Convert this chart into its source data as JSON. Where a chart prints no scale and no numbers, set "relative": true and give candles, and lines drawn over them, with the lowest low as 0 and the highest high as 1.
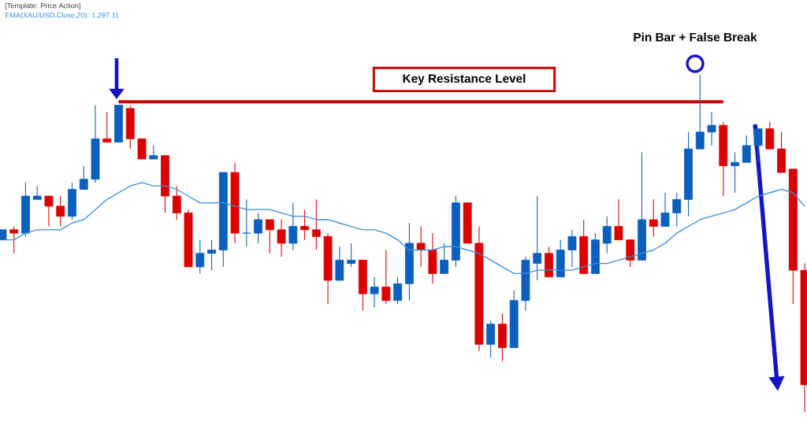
{
  "chart_data": {
    "type": "candlestick",
    "relative": true,
    "legend": "top left",
    "categories": [
      null,
      null,
      null,
      null,
      null,
      null,
      null,
      null,
      null,
      null,
      null,
      null,
      null,
      null,
      null,
      null,
      null,
      null,
      null,
      null,
      null,
      null,
      null,
      null,
      null,
      null,
      null,
      null,
      null,
      null,
      null,
      null,
      null,
      null,
      null,
      null,
      null,
      null,
      null,
      null,
      null,
      null,
      null,
      null,
      null,
      null,
      null,
      null,
      null,
      null,
      null,
      null,
      null,
      null,
      null,
      null,
      null,
      null,
      null,
      null,
      null,
      null,
      null,
      null,
      null,
      null,
      null,
      null,
      null,
      null
    ],
    "series": [
      {
        "type": "line",
        "name": "EMA(XAU/USD.Close,20): 1,297.11",
        "color": "#3b8fe0",
        "values": [
          0.51,
          0.51,
          0.53,
          0.54,
          0.54,
          0.54,
          0.56,
          0.57,
          0.6,
          0.63,
          0.65,
          0.67,
          0.68,
          0.67,
          0.67,
          0.66,
          0.64,
          0.62,
          0.62,
          0.62,
          0.61,
          0.6,
          0.6,
          0.6,
          0.59,
          0.58,
          0.58,
          0.57,
          0.57,
          0.56,
          0.55,
          0.54,
          0.54,
          0.53,
          0.51,
          0.48,
          0.48,
          0.48,
          0.49,
          0.49,
          0.48,
          0.47,
          0.45,
          0.43,
          0.41,
          0.41,
          0.42,
          0.42,
          0.42,
          0.42,
          0.43,
          0.44,
          0.44,
          0.45,
          0.46,
          0.47,
          0.48,
          0.5,
          0.53,
          0.55,
          0.57,
          0.58,
          0.59,
          0.6,
          0.62,
          0.64,
          0.65,
          0.66,
          0.65,
          0.61
        ]
      },
      {
        "type": "line",
        "color": "#cc0000",
        "values": [
          null,
          null,
          null,
          null,
          null,
          null,
          null,
          null,
          null,
          null,
          0.92,
          null,
          null,
          null,
          null,
          null,
          null,
          null,
          null,
          null,
          null,
          null,
          null,
          null,
          null,
          null,
          null,
          null,
          null,
          null,
          null,
          null,
          null,
          null,
          null,
          null,
          null,
          null,
          null,
          null,
          null,
          null,
          null,
          null,
          null,
          null,
          null,
          null,
          null,
          null,
          null,
          null,
          null,
          null,
          null,
          null,
          null,
          null,
          null,
          null,
          null,
          null,
          0.92,
          null,
          null,
          null,
          null,
          null,
          null,
          null
        ]
      },
      {
        "ohlc": [
          [
            0.51,
            0.54,
            0.51,
            0.54
          ],
          [
            0.54,
            0.55,
            0.47,
            0.53
          ],
          [
            0.53,
            0.68,
            0.52,
            0.64
          ],
          [
            0.63,
            0.67,
            0.63,
            0.64
          ],
          [
            0.64,
            0.64,
            0.55,
            0.61
          ],
          [
            0.61,
            0.64,
            0.55,
            0.58
          ],
          [
            0.58,
            0.68,
            0.57,
            0.66
          ],
          [
            0.66,
            0.73,
            0.66,
            0.69
          ],
          [
            0.69,
            0.91,
            0.68,
            0.81
          ],
          [
            0.81,
            0.89,
            0.8,
            0.8
          ],
          [
            0.8,
            0.91,
            0.8,
            0.91
          ],
          [
            0.9,
            0.91,
            0.78,
            0.81
          ],
          [
            0.81,
            0.81,
            0.75,
            0.75
          ],
          [
            0.75,
            0.79,
            0.75,
            0.76
          ],
          [
            0.76,
            0.76,
            0.59,
            0.64
          ],
          [
            0.64,
            0.67,
            0.57,
            0.59
          ],
          [
            0.59,
            0.6,
            0.43,
            0.43
          ],
          [
            0.43,
            0.51,
            0.41,
            0.47
          ],
          [
            0.47,
            0.51,
            0.42,
            0.48
          ],
          [
            0.48,
            0.71,
            0.43,
            0.71
          ],
          [
            0.71,
            0.74,
            0.5,
            0.53
          ],
          [
            0.53,
            0.63,
            0.49,
            0.53
          ],
          [
            0.53,
            0.59,
            0.5,
            0.57
          ],
          [
            0.57,
            0.57,
            0.47,
            0.54
          ],
          [
            0.54,
            0.57,
            0.46,
            0.5
          ],
          [
            0.5,
            0.62,
            0.48,
            0.55
          ],
          [
            0.55,
            0.6,
            0.51,
            0.54
          ],
          [
            0.54,
            0.63,
            0.48,
            0.52
          ],
          [
            0.52,
            0.53,
            0.32,
            0.39
          ],
          [
            0.39,
            0.49,
            0.39,
            0.45
          ],
          [
            0.44,
            0.5,
            0.43,
            0.45
          ],
          [
            0.45,
            0.45,
            0.3,
            0.35
          ],
          [
            0.35,
            0.4,
            0.31,
            0.37
          ],
          [
            0.37,
            0.48,
            0.32,
            0.33
          ],
          [
            0.33,
            0.4,
            0.32,
            0.38
          ],
          [
            0.38,
            0.56,
            0.33,
            0.5
          ],
          [
            0.5,
            0.55,
            0.43,
            0.48
          ],
          [
            0.48,
            0.53,
            0.38,
            0.41
          ],
          [
            0.41,
            0.5,
            0.41,
            0.45
          ],
          [
            0.45,
            0.64,
            0.43,
            0.62
          ],
          [
            0.62,
            0.62,
            0.5,
            0.5
          ],
          [
            0.5,
            0.55,
            0.18,
            0.2
          ],
          [
            0.2,
            0.27,
            0.16,
            0.26
          ],
          [
            0.26,
            0.29,
            0.15,
            0.19
          ],
          [
            0.19,
            0.36,
            0.19,
            0.33
          ],
          [
            0.33,
            0.46,
            0.3,
            0.45
          ],
          [
            0.44,
            0.64,
            0.39,
            0.47
          ],
          [
            0.47,
            0.49,
            0.4,
            0.4
          ],
          [
            0.4,
            0.51,
            0.4,
            0.48
          ],
          [
            0.48,
            0.54,
            0.43,
            0.52
          ],
          [
            0.52,
            0.57,
            0.41,
            0.41
          ],
          [
            0.41,
            0.53,
            0.41,
            0.51
          ],
          [
            0.5,
            0.58,
            0.47,
            0.55
          ],
          [
            0.55,
            0.63,
            0.51,
            0.51
          ],
          [
            0.51,
            0.51,
            0.43,
            0.45
          ],
          [
            0.45,
            0.77,
            0.45,
            0.57
          ],
          [
            0.57,
            0.63,
            0.52,
            0.55
          ],
          [
            0.55,
            0.65,
            0.55,
            0.59
          ],
          [
            0.59,
            0.65,
            0.55,
            0.63
          ],
          [
            0.63,
            0.83,
            0.58,
            0.78
          ],
          [
            0.78,
            1,
            0.78,
            0.83
          ],
          [
            0.83,
            0.89,
            0.79,
            0.85
          ],
          [
            0.85,
            0.86,
            0.64,
            0.73
          ],
          [
            0.73,
            0.77,
            0.65,
            0.74
          ],
          [
            0.74,
            0.82,
            0.74,
            0.79
          ],
          [
            0.79,
            0.84,
            0.74,
            0.84
          ],
          [
            0.84,
            0.86,
            0.78,
            0.78
          ],
          [
            0.78,
            0.83,
            0.71,
            0.71
          ],
          [
            0.72,
            0.72,
            0.32,
            0.42
          ],
          [
            0.42,
            0.44,
            0,
            0.08
          ]
        ],
        "colors": [
          "#0b5fbf",
          "#dd0000",
          "#0b5fbf",
          "#0b5fbf",
          "#dd0000",
          "#dd0000",
          "#0b5fbf",
          "#0b5fbf",
          "#0b5fbf",
          "#dd0000",
          "#0b5fbf",
          "#dd0000",
          "#dd0000",
          "#0b5fbf",
          "#dd0000",
          "#dd0000",
          "#dd0000",
          "#0b5fbf",
          "#0b5fbf",
          "#0b5fbf",
          "#dd0000",
          "#0b5fbf",
          "#0b5fbf",
          "#dd0000",
          "#dd0000",
          "#0b5fbf",
          "#dd0000",
          "#dd0000",
          "#dd0000",
          "#0b5fbf",
          "#0b5fbf",
          "#dd0000",
          "#0b5fbf",
          "#dd0000",
          "#0b5fbf",
          "#0b5fbf",
          "#dd0000",
          "#dd0000",
          "#0b5fbf",
          "#0b5fbf",
          "#dd0000",
          "#dd0000",
          "#0b5fbf",
          "#dd0000",
          "#0b5fbf",
          "#0b5fbf",
          "#0b5fbf",
          "#dd0000",
          "#0b5fbf",
          "#0b5fbf",
          "#dd0000",
          "#0b5fbf",
          "#0b5fbf",
          "#dd0000",
          "#dd0000",
          "#0b5fbf",
          "#dd0000",
          "#0b5fbf",
          "#0b5fbf",
          "#0b5fbf",
          "#0b5fbf",
          "#0b5fbf",
          "#dd0000",
          "#0b5fbf",
          "#0b5fbf",
          "#0b5fbf",
          "#dd0000",
          "#dd0000",
          "#dd0000",
          "#dd0000"
        ]
      }
    ],
    "annotations": [
      "[Template: Price Action]",
      "Key Resistance Level",
      "Pin Bar + False Break"
    ]
  }
}
